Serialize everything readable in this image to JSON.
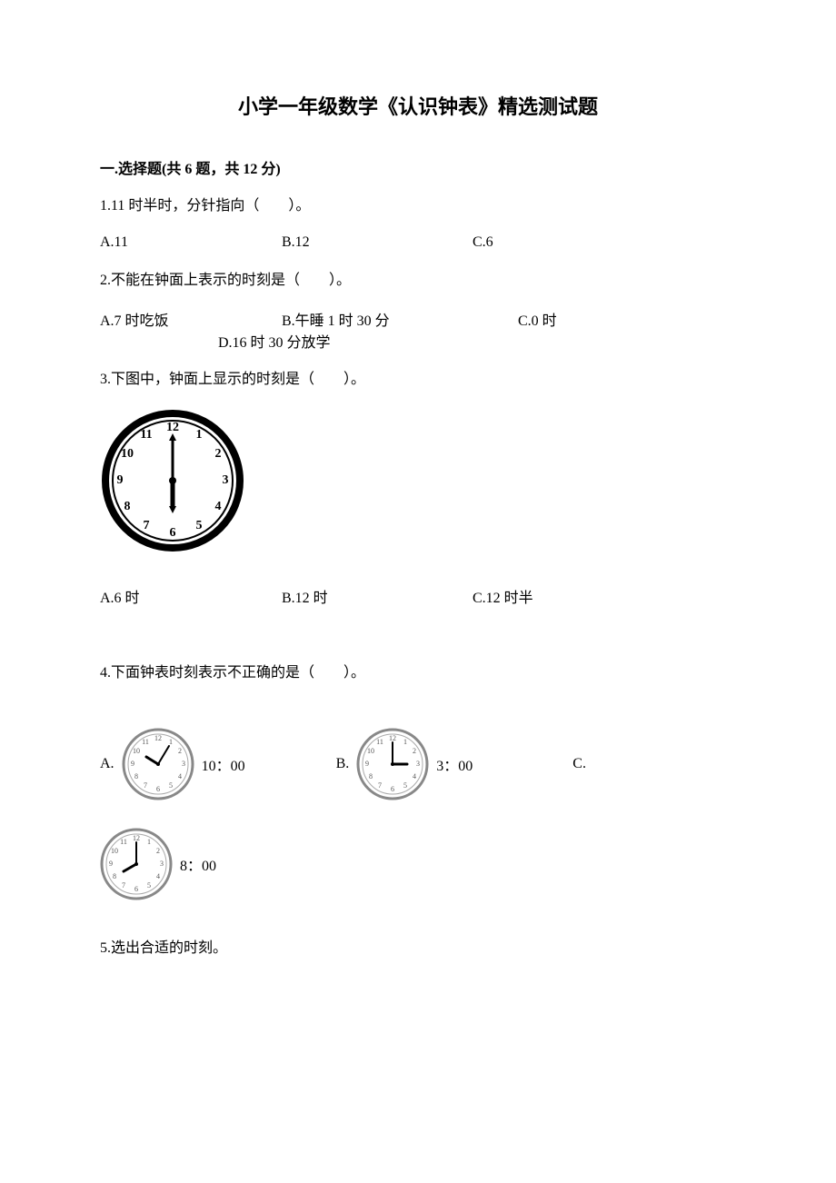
{
  "title": "小学一年级数学《认识钟表》精选测试题",
  "sectionHeader": "一.选择题(共 6 题，共 12 分)",
  "q1": {
    "text": "1.11 时半时，分针指向（　　）。",
    "optA": "A.11",
    "optB": "B.12",
    "optC": "C.6"
  },
  "q2": {
    "text": "2.不能在钟面上表示的时刻是（　　）。",
    "optA": "A.7 时吃饭",
    "optB": "B.午睡 1 时 30 分",
    "optC": "C.0 时",
    "optD": "D.16 时 30 分放学"
  },
  "q3": {
    "text": "3.下图中，钟面上显示的时刻是（　　）。",
    "optA": "A.6 时",
    "optB": "B.12 时",
    "optC": "C.12 时半",
    "clock": {
      "hourHand": 180,
      "minuteHand": 0
    }
  },
  "q4": {
    "text": "4.下面钟表时刻表示不正确的是（　　）。",
    "optA": "A.",
    "timeA": "10：00",
    "optB": "B.",
    "timeB": "3：00",
    "optC": "C.",
    "timeC": "8：00",
    "clockA": {
      "hourHand": 300,
      "minuteHand": 60
    },
    "clockB": {
      "hourHand": 90,
      "minuteHand": 0
    },
    "clockC": {
      "hourHand": 240,
      "minuteHand": 0
    }
  },
  "q5": {
    "text": "5.选出合适的时刻。"
  }
}
